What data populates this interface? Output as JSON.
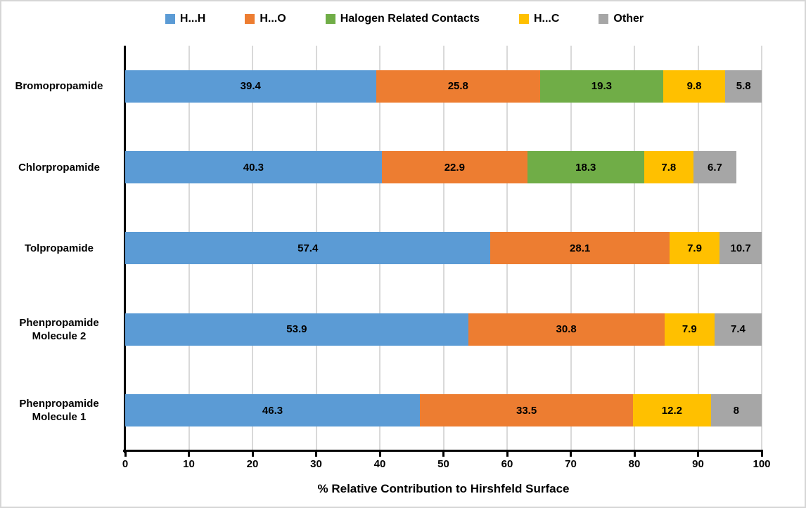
{
  "chart_data": {
    "type": "bar",
    "orientation": "horizontal",
    "stacked": true,
    "title": "",
    "xlabel": "% Relative Contribution to Hirshfeld Surface",
    "xlim": [
      0,
      100
    ],
    "xticks": [
      0,
      10,
      20,
      30,
      40,
      50,
      60,
      70,
      80,
      90,
      100
    ],
    "grid": "vertical-gridlines-on",
    "legend_position": "top",
    "categories": [
      "Bromopropamide",
      "Chlorpropamide",
      "Tolpropamide",
      "Phenpropamide Molecule 2",
      "Phenpropamide Molecule 1"
    ],
    "category_label_lines": [
      [
        "Bromopropamide"
      ],
      [
        "Chlorpropamide"
      ],
      [
        "Tolpropamide"
      ],
      [
        "Phenpropamide",
        "Molecule 2"
      ],
      [
        "Phenpropamide",
        "Molecule 1"
      ]
    ],
    "series": [
      {
        "name": "H...H",
        "color": "#5B9BD5",
        "values": [
          39.4,
          40.3,
          57.4,
          53.9,
          46.3
        ]
      },
      {
        "name": "H...O",
        "color": "#ED7D31",
        "values": [
          25.8,
          22.9,
          28.1,
          30.8,
          33.5
        ]
      },
      {
        "name": "Halogen Related Contacts",
        "color": "#70AD47",
        "values": [
          19.3,
          18.3,
          null,
          null,
          null
        ]
      },
      {
        "name": "H...C",
        "color": "#FFC000",
        "values": [
          9.8,
          7.8,
          7.9,
          7.9,
          12.2
        ]
      },
      {
        "name": "Other",
        "color": "#A6A6A6",
        "values": [
          5.8,
          6.7,
          10.7,
          7.4,
          8
        ]
      }
    ]
  },
  "colors": {
    "axis": "#000000",
    "gridline": "#D9D9D9",
    "background": "#FFFFFF",
    "text": "#000000"
  }
}
